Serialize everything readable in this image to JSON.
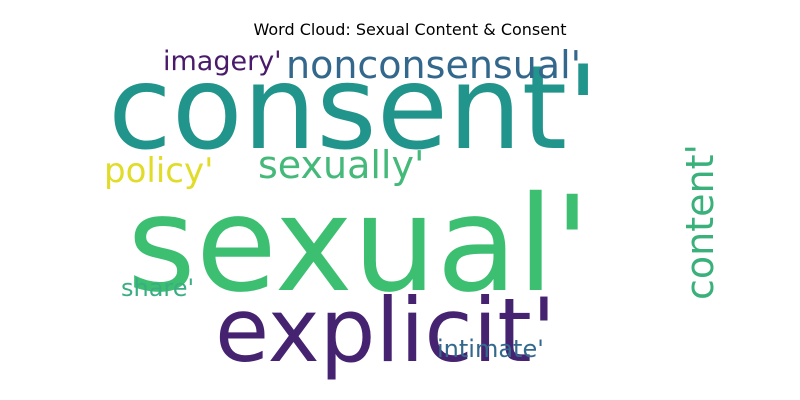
{
  "title": "Word Cloud: Sexual Content & Consent",
  "words": [
    {
      "text": "consent'",
      "color": "#21958b"
    },
    {
      "text": "sexual'",
      "color": "#3dbf72"
    },
    {
      "text": "explicit'",
      "color": "#462370"
    },
    {
      "text": "nonconsensual'",
      "color": "#33678c"
    },
    {
      "text": "imagery'",
      "color": "#4a1a6a"
    },
    {
      "text": "sexually'",
      "color": "#44b97a"
    },
    {
      "text": "policy'",
      "color": "#e0dc28"
    },
    {
      "text": "content'",
      "color": "#3ab07a"
    },
    {
      "text": "share'",
      "color": "#3aae82"
    },
    {
      "text": "intimate'",
      "color": "#33698c"
    }
  ]
}
